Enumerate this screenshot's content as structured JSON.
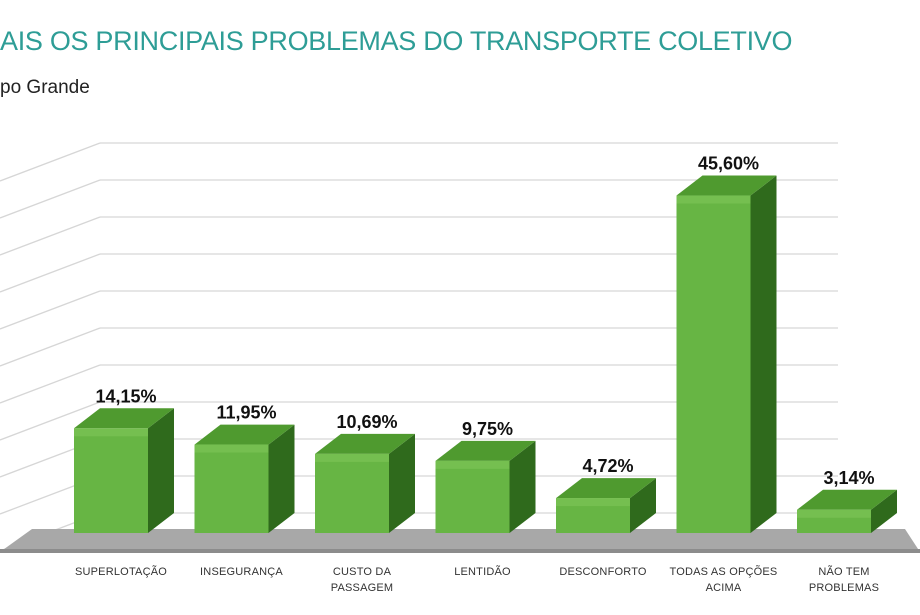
{
  "title": "AIS OS PRINCIPAIS PROBLEMAS DO TRANSPORTE COLETIVO",
  "subtitle": "po Grande",
  "colors": {
    "title": "#2e9d96",
    "bar_front": "#67b544",
    "bar_front_light": "#7fc658",
    "bar_top": "#4f9a2f",
    "bar_side": "#2f6a1c",
    "floor": "#a8a8a8",
    "grid": "#d6d6d6"
  },
  "chart_data": {
    "type": "bar",
    "title": "AIS OS PRINCIPAIS PROBLEMAS DO TRANSPORTE COLETIVO",
    "subtitle": "po Grande",
    "xlabel": "",
    "ylabel": "",
    "ylim": [
      0,
      50
    ],
    "grid": true,
    "categories": [
      [
        "SUPERLOTAÇÃO"
      ],
      [
        "INSEGURANÇA"
      ],
      [
        "CUSTO DA",
        "PASSAGEM"
      ],
      [
        "LENTIDÃO"
      ],
      [
        "DESCONFORTO"
      ],
      [
        "TODAS AS OPÇÕES",
        "ACIMA"
      ],
      [
        "NÃO TEM",
        "PROBLEMAS"
      ]
    ],
    "values": [
      14.15,
      11.95,
      10.69,
      9.75,
      4.72,
      45.6,
      3.14
    ],
    "labels": [
      "14,15%",
      "11,95%",
      "10,69%",
      "9,75%",
      "4,72%",
      "45,60%",
      "3,14%"
    ]
  }
}
